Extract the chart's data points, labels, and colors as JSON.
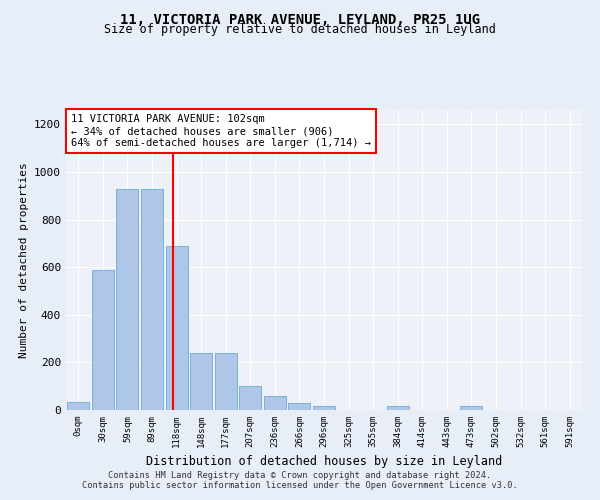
{
  "title_line1": "11, VICTORIA PARK AVENUE, LEYLAND, PR25 1UG",
  "title_line2": "Size of property relative to detached houses in Leyland",
  "xlabel": "Distribution of detached houses by size in Leyland",
  "ylabel": "Number of detached properties",
  "bar_labels": [
    "0sqm",
    "30sqm",
    "59sqm",
    "89sqm",
    "118sqm",
    "148sqm",
    "177sqm",
    "207sqm",
    "236sqm",
    "266sqm",
    "296sqm",
    "325sqm",
    "355sqm",
    "384sqm",
    "414sqm",
    "443sqm",
    "473sqm",
    "502sqm",
    "532sqm",
    "561sqm",
    "591sqm"
  ],
  "bar_values": [
    35,
    590,
    930,
    930,
    690,
    240,
    240,
    100,
    60,
    30,
    15,
    0,
    0,
    15,
    0,
    0,
    15,
    0,
    0,
    0,
    0
  ],
  "bar_color": "#aec6e8",
  "bar_edge_color": "#6aaad4",
  "vline_x": 3.85,
  "vline_color": "red",
  "annotation_text": "11 VICTORIA PARK AVENUE: 102sqm\n← 34% of detached houses are smaller (906)\n64% of semi-detached houses are larger (1,714) →",
  "annotation_box_color": "white",
  "annotation_box_edge": "red",
  "ylim": [
    0,
    1260
  ],
  "yticks": [
    0,
    200,
    400,
    600,
    800,
    1000,
    1200
  ],
  "footer_text": "Contains HM Land Registry data © Crown copyright and database right 2024.\nContains public sector information licensed under the Open Government Licence v3.0.",
  "bg_color": "#e8eef7",
  "plot_bg_color": "#eef2f8"
}
